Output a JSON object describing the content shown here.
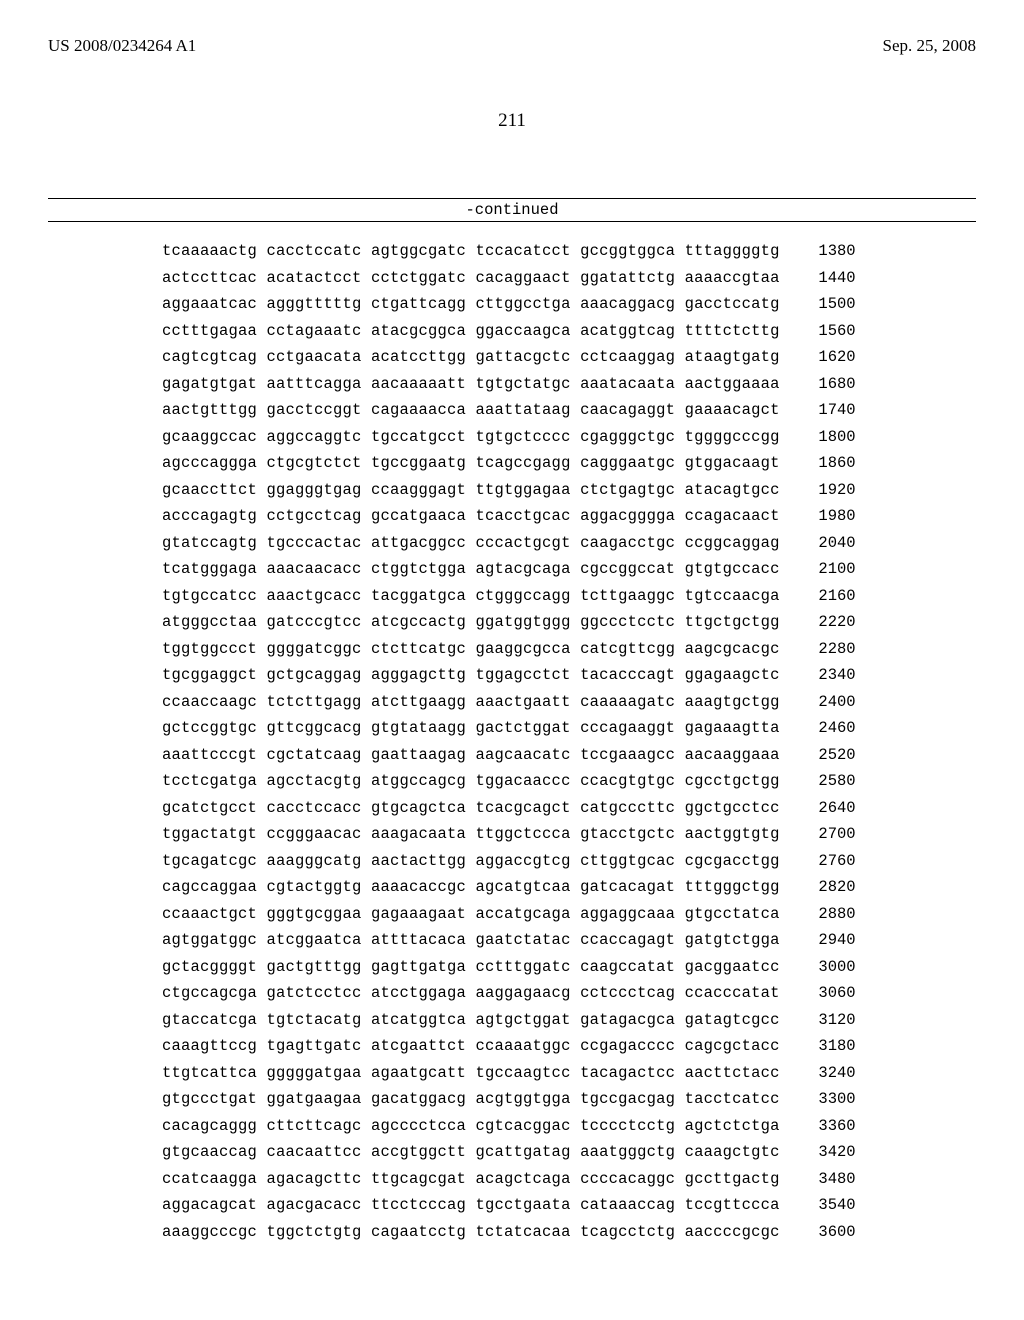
{
  "header": {
    "pub_number": "US 2008/0234264 A1",
    "pub_date": "Sep. 25, 2008"
  },
  "page_number": "211",
  "continued_label": "-continued",
  "sequence": {
    "rows": [
      {
        "groups": [
          "tcaaaaactg",
          "cacctccatc",
          "agtggcgatc",
          "tccacatcct",
          "gccggtggca",
          "tttaggggtg"
        ],
        "pos": "1380"
      },
      {
        "groups": [
          "actccttcac",
          "acatactcct",
          "cctctggatc",
          "cacaggaact",
          "ggatattctg",
          "aaaaccgtaa"
        ],
        "pos": "1440"
      },
      {
        "groups": [
          "aggaaatcac",
          "agggtttttg",
          "ctgattcagg",
          "cttggcctga",
          "aaacaggacg",
          "gacctccatg"
        ],
        "pos": "1500"
      },
      {
        "groups": [
          "cctttgagaa",
          "cctagaaatc",
          "atacgcggca",
          "ggaccaagca",
          "acatggtcag",
          "ttttctcttg"
        ],
        "pos": "1560"
      },
      {
        "groups": [
          "cagtcgtcag",
          "cctgaacata",
          "acatccttgg",
          "gattacgctc",
          "cctcaaggag",
          "ataagtgatg"
        ],
        "pos": "1620"
      },
      {
        "groups": [
          "gagatgtgat",
          "aatttcagga",
          "aacaaaaatt",
          "tgtgctatgc",
          "aaatacaata",
          "aactggaaaa"
        ],
        "pos": "1680"
      },
      {
        "groups": [
          "aactgtttgg",
          "gacctccggt",
          "cagaaaacca",
          "aaattataag",
          "caacagaggt",
          "gaaaacagct"
        ],
        "pos": "1740"
      },
      {
        "groups": [
          "gcaaggccac",
          "aggccaggtc",
          "tgccatgcct",
          "tgtgctcccc",
          "cgagggctgc",
          "tggggcccgg"
        ],
        "pos": "1800"
      },
      {
        "groups": [
          "agcccaggga",
          "ctgcgtctct",
          "tgccggaatg",
          "tcagccgagg",
          "cagggaatgc",
          "gtggacaagt"
        ],
        "pos": "1860"
      },
      {
        "groups": [
          "gcaaccttct",
          "ggagggtgag",
          "ccaagggagt",
          "ttgtggagaa",
          "ctctgagtgc",
          "atacagtgcc"
        ],
        "pos": "1920"
      },
      {
        "groups": [
          "acccagagtg",
          "cctgcctcag",
          "gccatgaaca",
          "tcacctgcac",
          "aggacgggga",
          "ccagacaact"
        ],
        "pos": "1980"
      },
      {
        "groups": [
          "gtatccagtg",
          "tgcccactac",
          "attgacggcc",
          "cccactgcgt",
          "caagacctgc",
          "ccggcaggag"
        ],
        "pos": "2040"
      },
      {
        "groups": [
          "tcatgggaga",
          "aaacaacacc",
          "ctggtctgga",
          "agtacgcaga",
          "cgccggccat",
          "gtgtgccacc"
        ],
        "pos": "2100"
      },
      {
        "groups": [
          "tgtgccatcc",
          "aaactgcacc",
          "tacggatgca",
          "ctgggccagg",
          "tcttgaaggc",
          "tgtccaacga"
        ],
        "pos": "2160"
      },
      {
        "groups": [
          "atgggcctaa",
          "gatcccgtcc",
          "atcgccactg",
          "ggatggtggg",
          "ggccctcctc",
          "ttgctgctgg"
        ],
        "pos": "2220"
      },
      {
        "groups": [
          "tggtggccct",
          "ggggatcggc",
          "ctcttcatgc",
          "gaaggcgcca",
          "catcgttcgg",
          "aagcgcacgc"
        ],
        "pos": "2280"
      },
      {
        "groups": [
          "tgcggaggct",
          "gctgcaggag",
          "agggagcttg",
          "tggagcctct",
          "tacacccagt",
          "ggagaagctc"
        ],
        "pos": "2340"
      },
      {
        "groups": [
          "ccaaccaagc",
          "tctcttgagg",
          "atcttgaagg",
          "aaactgaatt",
          "caaaaagatc",
          "aaagtgctgg"
        ],
        "pos": "2400"
      },
      {
        "groups": [
          "gctccggtgc",
          "gttcggcacg",
          "gtgtataagg",
          "gactctggat",
          "cccagaaggt",
          "gagaaagtta"
        ],
        "pos": "2460"
      },
      {
        "groups": [
          "aaattcccgt",
          "cgctatcaag",
          "gaattaagag",
          "aagcaacatc",
          "tccgaaagcc",
          "aacaaggaaa"
        ],
        "pos": "2520"
      },
      {
        "groups": [
          "tcctcgatga",
          "agcctacgtg",
          "atggccagcg",
          "tggacaaccc",
          "ccacgtgtgc",
          "cgcctgctgg"
        ],
        "pos": "2580"
      },
      {
        "groups": [
          "gcatctgcct",
          "cacctccacc",
          "gtgcagctca",
          "tcacgcagct",
          "catgcccttc",
          "ggctgcctcc"
        ],
        "pos": "2640"
      },
      {
        "groups": [
          "tggactatgt",
          "ccgggaacac",
          "aaagacaata",
          "ttggctccca",
          "gtacctgctc",
          "aactggtgtg"
        ],
        "pos": "2700"
      },
      {
        "groups": [
          "tgcagatcgc",
          "aaagggcatg",
          "aactacttgg",
          "aggaccgtcg",
          "cttggtgcac",
          "cgcgacctgg"
        ],
        "pos": "2760"
      },
      {
        "groups": [
          "cagccaggaa",
          "cgtactggtg",
          "aaaacaccgc",
          "agcatgtcaa",
          "gatcacagat",
          "tttgggctgg"
        ],
        "pos": "2820"
      },
      {
        "groups": [
          "ccaaactgct",
          "gggtgcggaa",
          "gagaaagaat",
          "accatgcaga",
          "aggaggcaaa",
          "gtgcctatca"
        ],
        "pos": "2880"
      },
      {
        "groups": [
          "agtggatggc",
          "atcggaatca",
          "attttacaca",
          "gaatctatac",
          "ccaccagagt",
          "gatgtctgga"
        ],
        "pos": "2940"
      },
      {
        "groups": [
          "gctacggggt",
          "gactgtttgg",
          "gagttgatga",
          "cctttggatc",
          "caagccatat",
          "gacggaatcc"
        ],
        "pos": "3000"
      },
      {
        "groups": [
          "ctgccagcga",
          "gatctcctcc",
          "atcctggaga",
          "aaggagaacg",
          "cctccctcag",
          "ccacccatat"
        ],
        "pos": "3060"
      },
      {
        "groups": [
          "gtaccatcga",
          "tgtctacatg",
          "atcatggtca",
          "agtgctggat",
          "gatagacgca",
          "gatagtcgcc"
        ],
        "pos": "3120"
      },
      {
        "groups": [
          "caaagttccg",
          "tgagttgatc",
          "atcgaattct",
          "ccaaaatggc",
          "ccgagacccc",
          "cagcgctacc"
        ],
        "pos": "3180"
      },
      {
        "groups": [
          "ttgtcattca",
          "gggggatgaa",
          "agaatgcatt",
          "tgccaagtcc",
          "tacagactcc",
          "aacttctacc"
        ],
        "pos": "3240"
      },
      {
        "groups": [
          "gtgccctgat",
          "ggatgaagaa",
          "gacatggacg",
          "acgtggtgga",
          "tgccgacgag",
          "tacctcatcc"
        ],
        "pos": "3300"
      },
      {
        "groups": [
          "cacagcaggg",
          "cttcttcagc",
          "agcccctcca",
          "cgtcacggac",
          "tcccctcctg",
          "agctctctga"
        ],
        "pos": "3360"
      },
      {
        "groups": [
          "gtgcaaccag",
          "caacaattcc",
          "accgtggctt",
          "gcattgatag",
          "aaatgggctg",
          "caaagctgtc"
        ],
        "pos": "3420"
      },
      {
        "groups": [
          "ccatcaagga",
          "agacagcttc",
          "ttgcagcgat",
          "acagctcaga",
          "ccccacaggc",
          "gccttgactg"
        ],
        "pos": "3480"
      },
      {
        "groups": [
          "aggacagcat",
          "agacgacacc",
          "ttcctcccag",
          "tgcctgaata",
          "cataaaccag",
          "tccgttccca"
        ],
        "pos": "3540"
      },
      {
        "groups": [
          "aaaggcccgc",
          "tggctctgtg",
          "cagaatcctg",
          "tctatcacaa",
          "tcagcctctg",
          "aaccccgcgc"
        ],
        "pos": "3600"
      }
    ]
  }
}
